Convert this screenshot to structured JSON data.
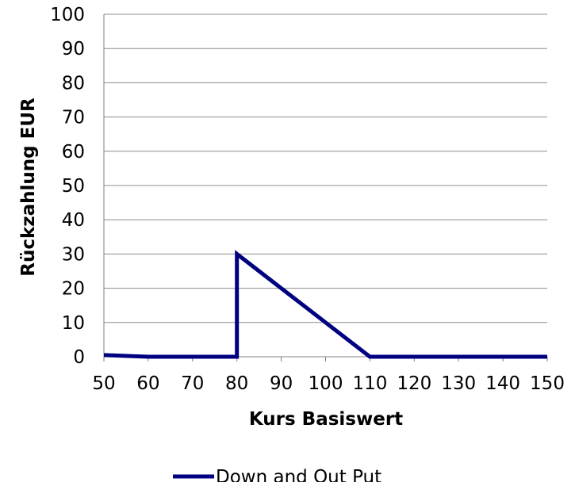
{
  "chart_data": {
    "type": "line",
    "xlabel": "Kurs Basiswert",
    "ylabel": "Rückzahlung EUR",
    "xlim": [
      50,
      150
    ],
    "ylim": [
      0,
      100
    ],
    "x_ticks": [
      "50",
      "60",
      "70",
      "80",
      "90",
      "100",
      "110",
      "120",
      "130",
      "140",
      "150"
    ],
    "y_ticks": [
      "0",
      "10",
      "20",
      "30",
      "40",
      "50",
      "60",
      "70",
      "80",
      "90",
      "100"
    ],
    "grid": "horizontal",
    "legend_position": "bottom",
    "series": [
      {
        "name": "Down and Out Put",
        "color": "#000080",
        "points": [
          [
            50,
            0.5
          ],
          [
            60,
            0
          ],
          [
            70,
            0
          ],
          [
            80,
            0
          ],
          [
            80,
            30
          ],
          [
            90,
            20
          ],
          [
            100,
            10
          ],
          [
            110,
            0
          ],
          [
            120,
            0
          ],
          [
            130,
            0
          ],
          [
            140,
            0
          ],
          [
            150,
            0
          ]
        ]
      }
    ]
  }
}
